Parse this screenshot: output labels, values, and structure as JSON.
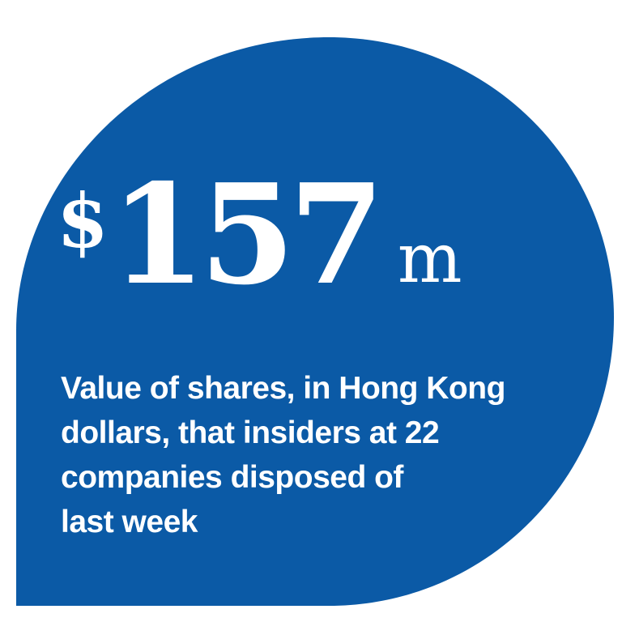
{
  "colors": {
    "shape_fill": "#0b5aa6",
    "background": "#ffffff",
    "text": "#ffffff"
  },
  "headline": {
    "currency_symbol": "$",
    "number": "157",
    "unit": "m"
  },
  "caption": {
    "lines": [
      "Value of shares, in Hong Kong",
      "dollars, that insiders at 22",
      "companies disposed of",
      "last week"
    ]
  }
}
